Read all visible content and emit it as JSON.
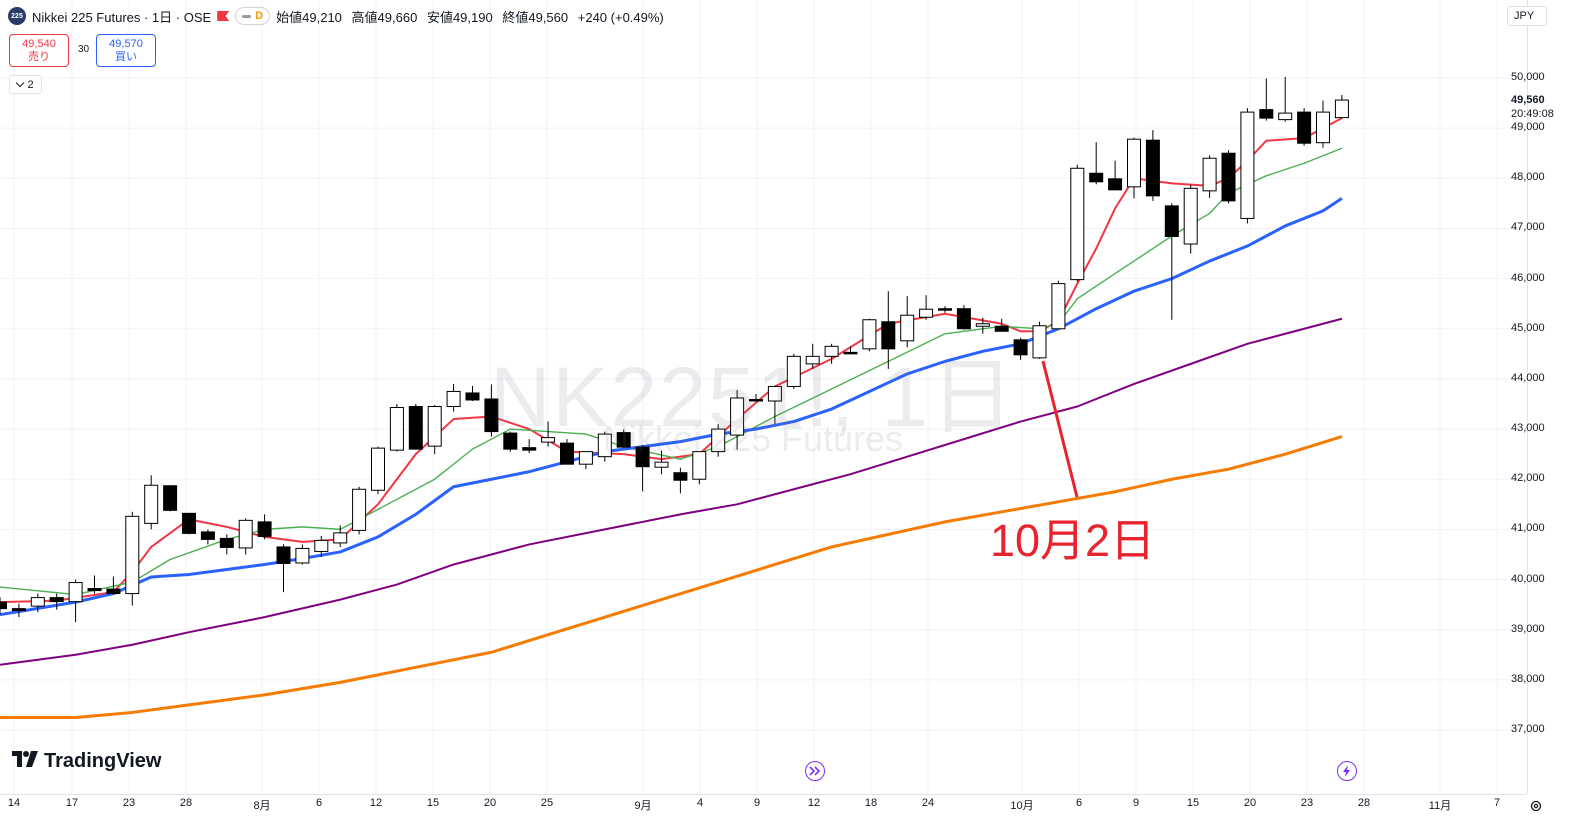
{
  "header": {
    "symbol_logo": "225",
    "symbol_title": "Nikkei 225 Futures · 1日 · OSE",
    "pill_letter": "D",
    "ohlc": [
      {
        "label": "始値",
        "value": "49,210"
      },
      {
        "label": "高値",
        "value": "49,660"
      },
      {
        "label": "安値",
        "value": "49,190"
      },
      {
        "label": "終値",
        "value": "49,560"
      }
    ],
    "change": "+240 (+0.49%)"
  },
  "trade": {
    "sell_price": "49,540",
    "sell_label": "売り",
    "spread": "30",
    "buy_price": "49,570",
    "buy_label": "買い"
  },
  "indicators_toggle": {
    "count": "2"
  },
  "watermark": {
    "main": "NK2251!, 1日",
    "sub": "Nikkei 225 Futures"
  },
  "annotation": {
    "text": "10月2日",
    "color": "#e8232d"
  },
  "brand": {
    "name": "TradingView"
  },
  "price_axis": {
    "currency": "JPY",
    "ticks": [
      "50,000",
      "49,000",
      "48,000",
      "47,000",
      "46,000",
      "45,000",
      "44,000",
      "43,000",
      "42,000",
      "41,000",
      "40,000",
      "39,000",
      "38,000",
      "37,000"
    ],
    "last_price": "49,560",
    "countdown": "20:49:08"
  },
  "time_axis": {
    "ticks": [
      "14",
      "17",
      "23",
      "28",
      "8月",
      "6",
      "12",
      "15",
      "20",
      "25",
      "9月",
      "4",
      "9",
      "12",
      "18",
      "24",
      "10月",
      "6",
      "9",
      "15",
      "20",
      "23",
      "28",
      "11月",
      "7"
    ]
  },
  "icons": {
    "event_icon_1": "fast-forward-icon",
    "event_icon_2": "lightning-icon",
    "settings": "gear-icon"
  },
  "colors": {
    "up": "#ffffff",
    "down": "#000000",
    "ma_red": "#f23645",
    "ma_green": "#4caf50",
    "ma_blue": "#2962ff",
    "ma_purple": "#800080",
    "ma_orange": "#f57c00",
    "annotation": "#e8232d"
  },
  "chart_data": {
    "type": "candlestick",
    "ylim": [
      36500,
      50900
    ],
    "candles": [
      {
        "o": 39550,
        "h": 39650,
        "l": 39300,
        "c": 39420
      },
      {
        "o": 39420,
        "h": 39520,
        "l": 39250,
        "c": 39380
      },
      {
        "o": 39470,
        "h": 39720,
        "l": 39350,
        "c": 39640
      },
      {
        "o": 39640,
        "h": 39720,
        "l": 39400,
        "c": 39560
      },
      {
        "o": 39560,
        "h": 40000,
        "l": 39150,
        "c": 39940
      },
      {
        "o": 39820,
        "h": 40080,
        "l": 39720,
        "c": 39780
      },
      {
        "o": 39810,
        "h": 40060,
        "l": 39700,
        "c": 39720
      },
      {
        "o": 39720,
        "h": 41350,
        "l": 39480,
        "c": 41260
      },
      {
        "o": 41120,
        "h": 42080,
        "l": 41000,
        "c": 41880
      },
      {
        "o": 41870,
        "h": 41880,
        "l": 41360,
        "c": 41380
      },
      {
        "o": 41320,
        "h": 41320,
        "l": 40900,
        "c": 40920
      },
      {
        "o": 40950,
        "h": 41000,
        "l": 40700,
        "c": 40800
      },
      {
        "o": 40820,
        "h": 40900,
        "l": 40500,
        "c": 40640
      },
      {
        "o": 40630,
        "h": 41220,
        "l": 40500,
        "c": 41180
      },
      {
        "o": 41150,
        "h": 41300,
        "l": 40800,
        "c": 40860
      },
      {
        "o": 40650,
        "h": 40700,
        "l": 39750,
        "c": 40320
      },
      {
        "o": 40330,
        "h": 40700,
        "l": 40300,
        "c": 40620
      },
      {
        "o": 40560,
        "h": 40870,
        "l": 40450,
        "c": 40780
      },
      {
        "o": 40730,
        "h": 41080,
        "l": 40650,
        "c": 40930
      },
      {
        "o": 40980,
        "h": 41850,
        "l": 40900,
        "c": 41800
      },
      {
        "o": 41780,
        "h": 42650,
        "l": 41700,
        "c": 42620
      },
      {
        "o": 42580,
        "h": 43500,
        "l": 42550,
        "c": 43430
      },
      {
        "o": 43450,
        "h": 43500,
        "l": 42600,
        "c": 42600
      },
      {
        "o": 42660,
        "h": 43480,
        "l": 42500,
        "c": 43450
      },
      {
        "o": 43450,
        "h": 43900,
        "l": 43350,
        "c": 43750
      },
      {
        "o": 43720,
        "h": 43860,
        "l": 43560,
        "c": 43580
      },
      {
        "o": 43600,
        "h": 43890,
        "l": 42850,
        "c": 42950
      },
      {
        "o": 42920,
        "h": 42950,
        "l": 42550,
        "c": 42600
      },
      {
        "o": 42630,
        "h": 42800,
        "l": 42520,
        "c": 42580
      },
      {
        "o": 42740,
        "h": 43150,
        "l": 42650,
        "c": 42830
      },
      {
        "o": 42720,
        "h": 42800,
        "l": 42300,
        "c": 42300
      },
      {
        "o": 42300,
        "h": 42500,
        "l": 42200,
        "c": 42550
      },
      {
        "o": 42450,
        "h": 42950,
        "l": 42350,
        "c": 42900
      },
      {
        "o": 42930,
        "h": 42990,
        "l": 42620,
        "c": 42640
      },
      {
        "o": 42640,
        "h": 42680,
        "l": 41760,
        "c": 42250
      },
      {
        "o": 42240,
        "h": 42570,
        "l": 42100,
        "c": 42340
      },
      {
        "o": 42130,
        "h": 42230,
        "l": 41720,
        "c": 41980
      },
      {
        "o": 42000,
        "h": 42550,
        "l": 41900,
        "c": 42550
      },
      {
        "o": 42550,
        "h": 43100,
        "l": 42450,
        "c": 43000
      },
      {
        "o": 42880,
        "h": 43780,
        "l": 42590,
        "c": 43620
      },
      {
        "o": 43590,
        "h": 43700,
        "l": 43550,
        "c": 43560
      },
      {
        "o": 43560,
        "h": 43850,
        "l": 43100,
        "c": 43850
      },
      {
        "o": 43850,
        "h": 44500,
        "l": 43800,
        "c": 44450
      },
      {
        "o": 44300,
        "h": 44700,
        "l": 44200,
        "c": 44450
      },
      {
        "o": 44450,
        "h": 44700,
        "l": 44300,
        "c": 44650
      },
      {
        "o": 44530,
        "h": 44650,
        "l": 44500,
        "c": 44520
      },
      {
        "o": 44600,
        "h": 45200,
        "l": 44550,
        "c": 45180
      },
      {
        "o": 45140,
        "h": 45750,
        "l": 44200,
        "c": 44600
      },
      {
        "o": 44760,
        "h": 45650,
        "l": 44630,
        "c": 45270
      },
      {
        "o": 45230,
        "h": 45670,
        "l": 45180,
        "c": 45390
      },
      {
        "o": 45400,
        "h": 45450,
        "l": 45320,
        "c": 45390
      },
      {
        "o": 45400,
        "h": 45470,
        "l": 44980,
        "c": 45000
      },
      {
        "o": 45050,
        "h": 45220,
        "l": 44900,
        "c": 45100
      },
      {
        "o": 45050,
        "h": 45200,
        "l": 44980,
        "c": 44950
      },
      {
        "o": 44780,
        "h": 44820,
        "l": 44380,
        "c": 44480
      },
      {
        "o": 44420,
        "h": 45140,
        "l": 44400,
        "c": 45060
      },
      {
        "o": 45000,
        "h": 45960,
        "l": 44990,
        "c": 45900
      },
      {
        "o": 45980,
        "h": 48270,
        "l": 45940,
        "c": 48200
      },
      {
        "o": 48100,
        "h": 48720,
        "l": 47880,
        "c": 47930
      },
      {
        "o": 47990,
        "h": 48350,
        "l": 47760,
        "c": 47770
      },
      {
        "o": 47830,
        "h": 48810,
        "l": 47600,
        "c": 48780
      },
      {
        "o": 48760,
        "h": 48960,
        "l": 47550,
        "c": 47650
      },
      {
        "o": 47450,
        "h": 47500,
        "l": 45180,
        "c": 46840
      },
      {
        "o": 46690,
        "h": 47870,
        "l": 46500,
        "c": 47800
      },
      {
        "o": 47750,
        "h": 48460,
        "l": 47610,
        "c": 48400
      },
      {
        "o": 48500,
        "h": 48560,
        "l": 47500,
        "c": 47550
      },
      {
        "o": 47200,
        "h": 49400,
        "l": 47100,
        "c": 49320
      },
      {
        "o": 49370,
        "h": 49990,
        "l": 49150,
        "c": 49200
      },
      {
        "o": 49170,
        "h": 50020,
        "l": 49130,
        "c": 49300
      },
      {
        "o": 49320,
        "h": 49400,
        "l": 48650,
        "c": 48700
      },
      {
        "o": 48710,
        "h": 49550,
        "l": 48610,
        "c": 49320
      },
      {
        "o": 49210,
        "h": 49660,
        "l": 49190,
        "c": 49560
      }
    ],
    "ma_series": [
      {
        "color": "#f23645",
        "points": [
          [
            0,
            39550
          ],
          [
            3,
            39580
          ],
          [
            6,
            39750
          ],
          [
            7,
            40150
          ],
          [
            8,
            40650
          ],
          [
            10,
            41200
          ],
          [
            12,
            41050
          ],
          [
            14,
            40850
          ],
          [
            16,
            40750
          ],
          [
            18,
            40800
          ],
          [
            20,
            41500
          ],
          [
            22,
            42500
          ],
          [
            24,
            43200
          ],
          [
            26,
            43250
          ],
          [
            28,
            43000
          ],
          [
            30,
            42550
          ],
          [
            33,
            42500
          ],
          [
            35,
            42400
          ],
          [
            37,
            42500
          ],
          [
            39,
            43200
          ],
          [
            41,
            43850
          ],
          [
            44,
            44400
          ],
          [
            47,
            45100
          ],
          [
            50,
            45300
          ],
          [
            53,
            45100
          ],
          [
            54,
            44950
          ],
          [
            55,
            44950
          ],
          [
            56,
            45150
          ],
          [
            57,
            45900
          ],
          [
            58,
            46600
          ],
          [
            59,
            47400
          ],
          [
            60,
            48000
          ],
          [
            62,
            47900
          ],
          [
            64,
            47850
          ],
          [
            65,
            48000
          ],
          [
            66,
            48350
          ],
          [
            67,
            48750
          ],
          [
            69,
            48800
          ],
          [
            71,
            49200
          ]
        ]
      },
      {
        "color": "#4caf50",
        "points": [
          [
            0,
            39850
          ],
          [
            4,
            39700
          ],
          [
            7,
            39950
          ],
          [
            9,
            40400
          ],
          [
            12,
            40800
          ],
          [
            14,
            41000
          ],
          [
            16,
            41050
          ],
          [
            18,
            41000
          ],
          [
            20,
            41400
          ],
          [
            23,
            42000
          ],
          [
            25,
            42600
          ],
          [
            27,
            43000
          ],
          [
            29,
            42950
          ],
          [
            31,
            42900
          ],
          [
            33,
            42650
          ],
          [
            36,
            42400
          ],
          [
            38,
            42650
          ],
          [
            41,
            43250
          ],
          [
            44,
            43800
          ],
          [
            47,
            44350
          ],
          [
            50,
            44900
          ],
          [
            53,
            45050
          ],
          [
            55,
            45000
          ],
          [
            56,
            45100
          ],
          [
            57,
            45600
          ],
          [
            59,
            46100
          ],
          [
            61,
            46600
          ],
          [
            62,
            46850
          ],
          [
            64,
            47300
          ],
          [
            65,
            47700
          ],
          [
            67,
            48050
          ],
          [
            69,
            48300
          ],
          [
            71,
            48600
          ]
        ]
      },
      {
        "color": "#2962ff",
        "points": [
          [
            0,
            39300
          ],
          [
            4,
            39550
          ],
          [
            6,
            39720
          ],
          [
            8,
            40050
          ],
          [
            10,
            40100
          ],
          [
            12,
            40200
          ],
          [
            14,
            40300
          ],
          [
            16,
            40420
          ],
          [
            18,
            40550
          ],
          [
            20,
            40850
          ],
          [
            22,
            41300
          ],
          [
            24,
            41850
          ],
          [
            26,
            42000
          ],
          [
            28,
            42150
          ],
          [
            30,
            42350
          ],
          [
            32,
            42550
          ],
          [
            34,
            42650
          ],
          [
            36,
            42750
          ],
          [
            38,
            42900
          ],
          [
            40,
            43000
          ],
          [
            42,
            43150
          ],
          [
            44,
            43400
          ],
          [
            46,
            43750
          ],
          [
            48,
            44100
          ],
          [
            50,
            44350
          ],
          [
            52,
            44550
          ],
          [
            54,
            44700
          ],
          [
            56,
            45000
          ],
          [
            58,
            45400
          ],
          [
            60,
            45750
          ],
          [
            62,
            46000
          ],
          [
            64,
            46350
          ],
          [
            66,
            46650
          ],
          [
            68,
            47050
          ],
          [
            70,
            47350
          ],
          [
            71,
            47600
          ]
        ]
      },
      {
        "color": "#800080",
        "points": [
          [
            0,
            38300
          ],
          [
            4,
            38500
          ],
          [
            7,
            38700
          ],
          [
            10,
            38950
          ],
          [
            14,
            39250
          ],
          [
            18,
            39600
          ],
          [
            21,
            39900
          ],
          [
            24,
            40300
          ],
          [
            28,
            40700
          ],
          [
            32,
            41000
          ],
          [
            36,
            41300
          ],
          [
            39,
            41500
          ],
          [
            42,
            41800
          ],
          [
            45,
            42100
          ],
          [
            48,
            42450
          ],
          [
            51,
            42800
          ],
          [
            54,
            43150
          ],
          [
            57,
            43450
          ],
          [
            60,
            43900
          ],
          [
            63,
            44300
          ],
          [
            66,
            44700
          ],
          [
            69,
            45000
          ],
          [
            71,
            45200
          ]
        ]
      },
      {
        "color": "#f57c00",
        "points": [
          [
            0,
            37250
          ],
          [
            4,
            37250
          ],
          [
            7,
            37350
          ],
          [
            10,
            37500
          ],
          [
            14,
            37700
          ],
          [
            18,
            37950
          ],
          [
            22,
            38250
          ],
          [
            26,
            38550
          ],
          [
            29,
            38900
          ],
          [
            32,
            39250
          ],
          [
            35,
            39600
          ],
          [
            38,
            39950
          ],
          [
            41,
            40300
          ],
          [
            44,
            40650
          ],
          [
            47,
            40900
          ],
          [
            50,
            41150
          ],
          [
            53,
            41350
          ],
          [
            56,
            41550
          ],
          [
            59,
            41750
          ],
          [
            62,
            42000
          ],
          [
            65,
            42200
          ],
          [
            68,
            42500
          ],
          [
            71,
            42850
          ]
        ]
      }
    ]
  }
}
